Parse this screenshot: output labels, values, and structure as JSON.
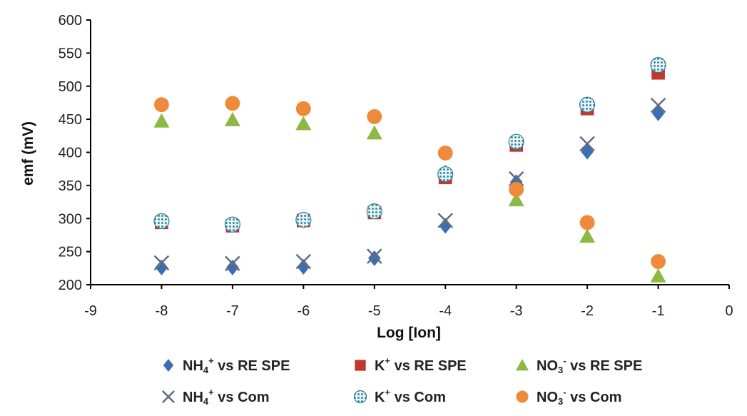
{
  "chart_data": {
    "type": "scatter",
    "title": "",
    "xlabel": "Log [Ion]",
    "ylabel": "emf (mV)",
    "xlim": [
      -9,
      0
    ],
    "ylim": [
      200,
      600
    ],
    "xticks": [
      -9,
      -8,
      -7,
      -6,
      -5,
      -4,
      -3,
      -2,
      -1,
      0
    ],
    "yticks": [
      200,
      250,
      300,
      350,
      400,
      450,
      500,
      550,
      600
    ],
    "legend_position": "bottom",
    "series": [
      {
        "name": "NH4+ vs RE SPE",
        "label_main": "NH",
        "label_sub": "4",
        "label_sup": "+",
        "label_rest": " vs RE SPE",
        "marker": "diamond",
        "color": "#3d6eb5",
        "x": [
          -8,
          -7,
          -6,
          -5,
          -4,
          -3,
          -2,
          -1
        ],
        "y": [
          226,
          226,
          227,
          240,
          289,
          355,
          401,
          459
        ]
      },
      {
        "name": "K+ vs RE SPE",
        "label_main": "K",
        "label_sub": "",
        "label_sup": "+",
        "label_rest": " vs RE SPE",
        "marker": "square",
        "color": "#c0392b",
        "x": [
          -8,
          -7,
          -6,
          -5,
          -4,
          -3,
          -2,
          -1
        ],
        "y": [
          294,
          289,
          297,
          309,
          362,
          411,
          466,
          520
        ]
      },
      {
        "name": "NO3- vs RE SPE",
        "label_main": "NO",
        "label_sub": "3",
        "label_sup": "-",
        "label_rest": " vs RE SPE",
        "marker": "triangle",
        "color": "#8db843",
        "x": [
          -8,
          -7,
          -6,
          -5,
          -4,
          -3,
          -2,
          -1
        ],
        "y": [
          447,
          449,
          443,
          429,
          370,
          328,
          273,
          213
        ]
      },
      {
        "name": "NH4+ vs Com",
        "label_main": "NH",
        "label_sub": "4",
        "label_sup": "+",
        "label_rest": " vs Com",
        "marker": "x",
        "color": "#5f6d80",
        "x": [
          -8,
          -7,
          -6,
          -5,
          -4,
          -3,
          -2,
          -1
        ],
        "y": [
          233,
          232,
          235,
          243,
          297,
          360,
          413,
          471
        ]
      },
      {
        "name": "K+ vs Com",
        "label_main": "K",
        "label_sub": "",
        "label_sup": "+",
        "label_rest": " vs Com",
        "marker": "dotted-circle",
        "color": "#4fa3b8",
        "x": [
          -8,
          -7,
          -6,
          -5,
          -4,
          -3,
          -2,
          -1
        ],
        "y": [
          296,
          291,
          298,
          311,
          367,
          416,
          472,
          532
        ]
      },
      {
        "name": "NO3- vs Com",
        "label_main": "NO",
        "label_sub": "3",
        "label_sup": "-",
        "label_rest": " vs Com",
        "marker": "circle",
        "color": "#ee8a3a",
        "x": [
          -8,
          -7,
          -6,
          -5,
          -4,
          -3,
          -2,
          -1
        ],
        "y": [
          472,
          474,
          466,
          454,
          399,
          344,
          294,
          235
        ]
      }
    ]
  }
}
